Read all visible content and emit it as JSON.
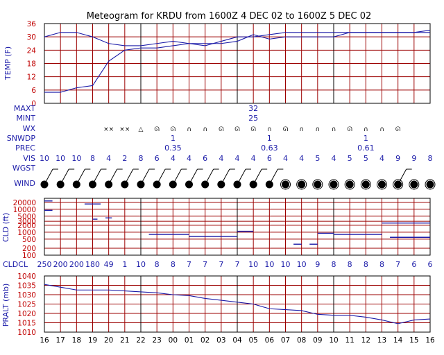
{
  "title": "Meteogram for KRDU from 1600Z  4 DEC 02 to 1600Z  5 DEC 02",
  "colors": {
    "grid": "#9b0000",
    "line": "#1a1aa8",
    "label": "#1a1aa8",
    "tick": "#c00000",
    "dark": "#000000"
  },
  "chart_data": [
    {
      "type": "line",
      "panel": "temperature",
      "ylabel": "TEMP (F)",
      "ylim": [
        0,
        36
      ],
      "yticks": [
        "0",
        "6",
        "12",
        "18",
        "24",
        "30",
        "36"
      ],
      "x": [
        "16",
        "17",
        "18",
        "19",
        "20",
        "21",
        "22",
        "23",
        "00",
        "01",
        "02",
        "03",
        "04",
        "05",
        "06",
        "07",
        "08",
        "09",
        "10",
        "11",
        "12",
        "13",
        "14",
        "15",
        "16"
      ],
      "series": [
        {
          "values": [
            30,
            32,
            32,
            30,
            27,
            26,
            26,
            27,
            28,
            27,
            26,
            28,
            30,
            30,
            31,
            32,
            32,
            32,
            32,
            32,
            32,
            32,
            32,
            32,
            33
          ]
        },
        {
          "values": [
            5,
            5,
            7,
            8,
            19,
            24,
            25,
            25,
            26,
            27,
            27,
            27,
            28,
            31,
            29,
            30,
            30,
            30,
            30,
            32,
            32,
            32,
            32,
            32,
            32
          ]
        }
      ]
    },
    {
      "type": "table",
      "panel": "surface",
      "rows": [
        {
          "label": "MAXT",
          "cells": [
            {
              "i": 13,
              "text": "32"
            }
          ]
        },
        {
          "label": "MINT",
          "cells": [
            {
              "i": 13,
              "text": "25"
            }
          ]
        },
        {
          "label": "WX",
          "cells": [
            {
              "i": 4,
              "text": "××"
            },
            {
              "i": 5,
              "text": "××"
            },
            {
              "i": 6,
              "text": "△"
            },
            {
              "i": 7,
              "text": "ᘏ"
            },
            {
              "i": 8,
              "text": "ᘏ"
            },
            {
              "i": 9,
              "text": "∩"
            },
            {
              "i": 10,
              "text": "∩"
            },
            {
              "i": 11,
              "text": "ᘏ"
            },
            {
              "i": 12,
              "text": "ᘏ"
            },
            {
              "i": 13,
              "text": "ᘏ"
            },
            {
              "i": 14,
              "text": "∩"
            },
            {
              "i": 15,
              "text": "ᘏ"
            },
            {
              "i": 16,
              "text": "∩"
            },
            {
              "i": 17,
              "text": "∩"
            },
            {
              "i": 18,
              "text": "∩"
            },
            {
              "i": 19,
              "text": "ᘏ"
            },
            {
              "i": 20,
              "text": "∩"
            },
            {
              "i": 21,
              "text": "∩"
            },
            {
              "i": 22,
              "text": "ᘏ"
            }
          ]
        },
        {
          "label": "SNWDP",
          "cells": [
            {
              "i": 8,
              "text": "1"
            },
            {
              "i": 14,
              "text": "1"
            },
            {
              "i": 20,
              "text": "1"
            }
          ]
        },
        {
          "label": "PREC",
          "cells": [
            {
              "i": 8,
              "text": "0.35"
            },
            {
              "i": 14,
              "text": "0.63"
            },
            {
              "i": 20,
              "text": "0.61"
            }
          ]
        },
        {
          "label": "VIS",
          "cells": [
            {
              "i": 0,
              "text": "10"
            },
            {
              "i": 1,
              "text": "10"
            },
            {
              "i": 2,
              "text": "10"
            },
            {
              "i": 3,
              "text": "8"
            },
            {
              "i": 4,
              "text": "4"
            },
            {
              "i": 5,
              "text": "2"
            },
            {
              "i": 6,
              "text": "8"
            },
            {
              "i": 7,
              "text": "6"
            },
            {
              "i": 8,
              "text": "4"
            },
            {
              "i": 9,
              "text": "4"
            },
            {
              "i": 10,
              "text": "6"
            },
            {
              "i": 11,
              "text": "4"
            },
            {
              "i": 12,
              "text": "4"
            },
            {
              "i": 13,
              "text": "4"
            },
            {
              "i": 14,
              "text": "6"
            },
            {
              "i": 15,
              "text": "4"
            },
            {
              "i": 16,
              "text": "4"
            },
            {
              "i": 17,
              "text": "5"
            },
            {
              "i": 18,
              "text": "4"
            },
            {
              "i": 19,
              "text": "5"
            },
            {
              "i": 20,
              "text": "5"
            },
            {
              "i": 21,
              "text": "4"
            },
            {
              "i": 22,
              "text": "9"
            },
            {
              "i": 23,
              "text": "9"
            },
            {
              "i": 24,
              "text": "8"
            }
          ]
        },
        {
          "label": "WGST",
          "cells": []
        },
        {
          "label": "WIND",
          "cells": []
        }
      ],
      "wind": [
        {
          "cover": 1.0,
          "barbs": 1
        },
        {
          "cover": 1.0,
          "barbs": 1
        },
        {
          "cover": 1.0,
          "barbs": 1
        },
        {
          "cover": 1.0,
          "barbs": 1
        },
        {
          "cover": 1.0,
          "barbs": 1
        },
        {
          "cover": 1.0,
          "barbs": 1
        },
        {
          "cover": 0.75,
          "barbs": 1
        },
        {
          "cover": 1.0,
          "barbs": 1
        },
        {
          "cover": 1.0,
          "barbs": 1
        },
        {
          "cover": 1.0,
          "barbs": 1
        },
        {
          "cover": 1.0,
          "barbs": 1
        },
        {
          "cover": 1.0,
          "barbs": 1
        },
        {
          "cover": 1.0,
          "barbs": 1
        },
        {
          "cover": 1.0,
          "barbs": 1
        },
        {
          "cover": 1.0,
          "barbs": 1
        },
        {
          "cover": 1.0,
          "barbs": 0
        },
        {
          "cover": 1.0,
          "barbs": 0
        },
        {
          "cover": 1.0,
          "barbs": 0
        },
        {
          "cover": 1.0,
          "barbs": 0
        },
        {
          "cover": 1.0,
          "barbs": 0
        },
        {
          "cover": 1.0,
          "barbs": 0
        },
        {
          "cover": 1.0,
          "barbs": 0
        },
        {
          "cover": 1.0,
          "barbs": 1
        },
        {
          "cover": 1.0,
          "barbs": 0
        },
        {
          "cover": 1.0,
          "barbs": 0
        }
      ]
    },
    {
      "type": "scatter",
      "panel": "clouds",
      "ylabel": "CLD (ft)",
      "yticks": [
        "100",
        "200",
        "500",
        "1000",
        "2000",
        "3000",
        "5000",
        "10000",
        "20000"
      ],
      "bottom_label": "CLDCL",
      "bottom_values": [
        "250",
        "200",
        "200",
        "180",
        "49",
        "1",
        "10",
        "8",
        "8",
        "7",
        "7",
        "7",
        "7",
        "10",
        "10",
        "10",
        "10",
        "9",
        "8",
        "8",
        "8",
        "8",
        "7",
        "6",
        "6"
      ],
      "layers": [
        {
          "from": 0,
          "to": 0.5,
          "ft": 23000
        },
        {
          "from": 0,
          "to": 0.5,
          "ft": 9000
        },
        {
          "from": 2.5,
          "to": 3.5,
          "ft": 17000
        },
        {
          "from": 3,
          "to": 3.3,
          "ft": 3700
        },
        {
          "from": 3.8,
          "to": 4.2,
          "ft": 4200
        },
        {
          "from": 6.5,
          "to": 8,
          "ft": 800
        },
        {
          "from": 8,
          "to": 9,
          "ft": 800
        },
        {
          "from": 9,
          "to": 11,
          "ft": 650
        },
        {
          "from": 11,
          "to": 12,
          "ft": 650
        },
        {
          "from": 12,
          "to": 13,
          "ft": 1100
        },
        {
          "from": 15.5,
          "to": 16,
          "ft": 300
        },
        {
          "from": 16.5,
          "to": 17,
          "ft": 300
        },
        {
          "from": 17,
          "to": 18,
          "ft": 900
        },
        {
          "from": 18,
          "to": 21,
          "ft": 800
        },
        {
          "from": 21,
          "to": 24,
          "ft": 2500
        },
        {
          "from": 21.5,
          "to": 24,
          "ft": 600
        }
      ]
    },
    {
      "type": "line",
      "panel": "pressure",
      "ylabel": "PRALT (mb)",
      "ylim": [
        1010,
        1040
      ],
      "yticks": [
        "1010",
        "1015",
        "1020",
        "1025",
        "1030",
        "1035",
        "1040"
      ],
      "x": [
        "16",
        "17",
        "18",
        "19",
        "20",
        "21",
        "22",
        "23",
        "00",
        "01",
        "02",
        "03",
        "04",
        "05",
        "06",
        "07",
        "08",
        "09",
        "10",
        "11",
        "12",
        "13",
        "14",
        "15",
        "16"
      ],
      "xlabels": [
        "16",
        "17",
        "18",
        "19",
        "20",
        "21",
        "22",
        "23",
        "00",
        "01",
        "02",
        "03",
        "04",
        "05",
        "06",
        "07",
        "08",
        "09",
        "10",
        "11",
        "12",
        "13",
        "14",
        "15",
        "16"
      ],
      "values": [
        1035.5,
        1034,
        1032.5,
        1032.5,
        1032.5,
        1032,
        1031.5,
        1031,
        1030,
        1029.5,
        1028,
        1027,
        1026,
        1025,
        1022.5,
        1022,
        1021.5,
        1019.5,
        1019,
        1019,
        1018,
        1016.5,
        1014.5,
        1016.5,
        1017
      ]
    }
  ]
}
